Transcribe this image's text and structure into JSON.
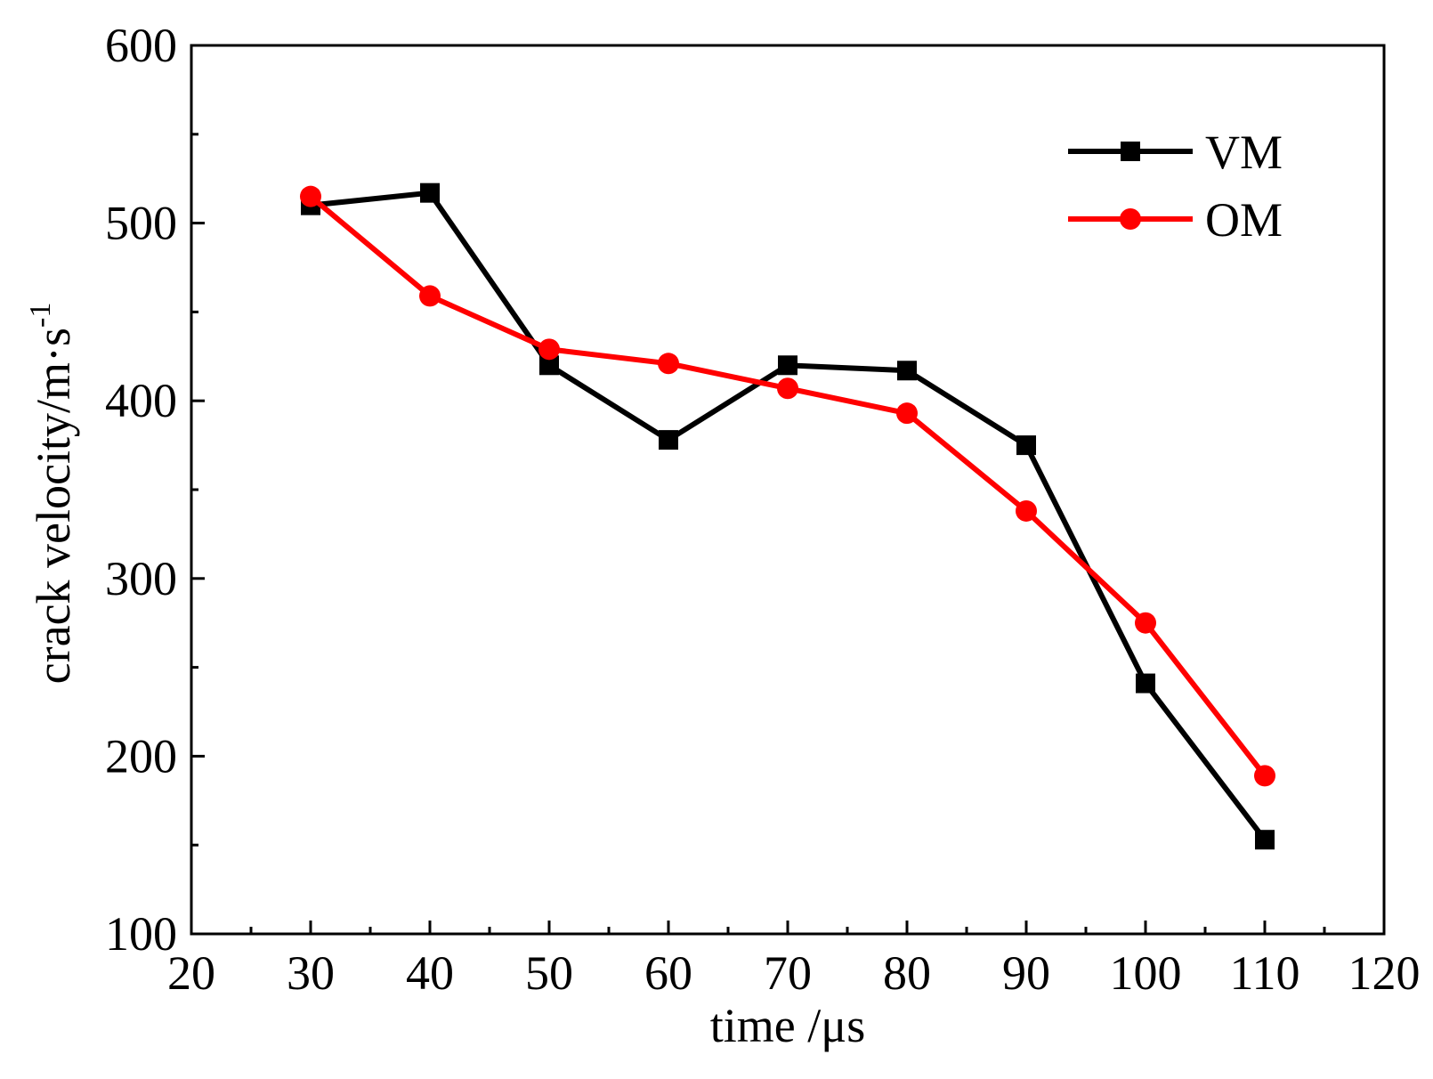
{
  "chart_data": {
    "type": "line",
    "xlabel": "time /μs",
    "ylabel": "crack velocity/m·s",
    "ylabel_superscript": "-1",
    "xlim": [
      20,
      120
    ],
    "ylim": [
      100,
      600
    ],
    "xticks": [
      20,
      30,
      40,
      50,
      60,
      70,
      80,
      90,
      100,
      110,
      120
    ],
    "yticks": [
      100,
      200,
      300,
      400,
      500,
      600
    ],
    "grid": false,
    "legend_position": "top-right",
    "series": [
      {
        "name": "VM",
        "color": "#000000",
        "marker": "square",
        "x": [
          30,
          40,
          50,
          60,
          70,
          80,
          90,
          100,
          110
        ],
        "y": [
          510,
          517,
          420,
          378,
          420,
          417,
          375,
          241,
          153
        ]
      },
      {
        "name": "OM",
        "color": "#ff0000",
        "marker": "circle",
        "x": [
          30,
          40,
          50,
          60,
          70,
          80,
          90,
          100,
          110
        ],
        "y": [
          515,
          459,
          429,
          421,
          407,
          393,
          338,
          275,
          189
        ]
      }
    ]
  }
}
